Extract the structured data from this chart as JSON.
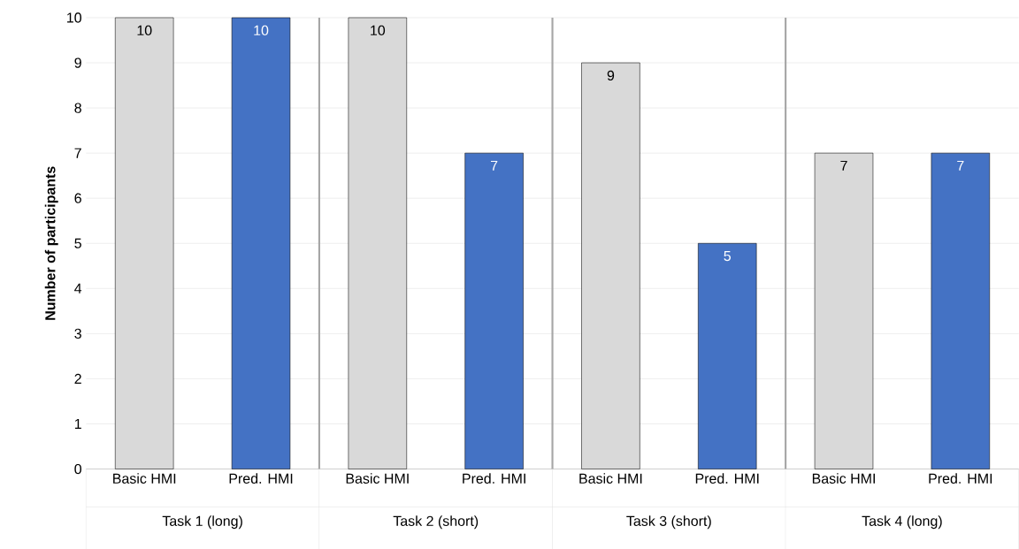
{
  "chart_data": {
    "type": "bar",
    "ylabel": "Number of participants",
    "categories": [
      "Task 1 (long)",
      "Task 2 (short)",
      "Task 3 (short)",
      "Task 4 (long)"
    ],
    "series": [
      {
        "name": "Basic HMI",
        "color": "#d9d9d9",
        "values": [
          10,
          10,
          9,
          7
        ]
      },
      {
        "name": "Pred. HMI",
        "color": "#4472c4",
        "values": [
          10,
          7,
          5,
          7
        ]
      }
    ],
    "ylim": [
      0,
      10
    ],
    "yticks": [
      0,
      1,
      2,
      3,
      4,
      5,
      6,
      7,
      8,
      9,
      10
    ],
    "grid": "y",
    "data_labels": true
  }
}
